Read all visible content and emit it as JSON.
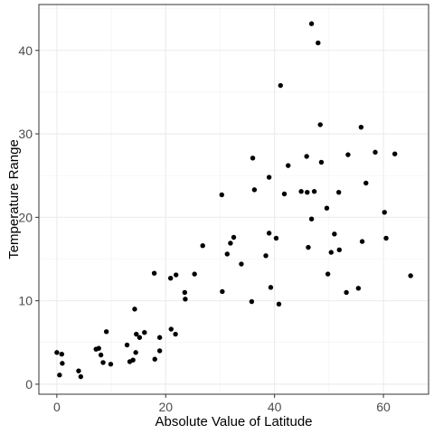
{
  "chart_data": {
    "type": "scatter",
    "title": "",
    "xlabel": "Absolute Value of Latitude",
    "ylabel": "Temperature Range",
    "xlim": [
      -3.3,
      68.3
    ],
    "ylim": [
      -1.2,
      45.5
    ],
    "xticks": [
      0,
      20,
      40,
      60
    ],
    "yticks": [
      0,
      10,
      20,
      30,
      40
    ],
    "grid": true,
    "legend": "none",
    "point_color": "#000000",
    "points": [
      [
        0,
        3.8
      ],
      [
        0.5,
        1.1
      ],
      [
        0.9,
        3.6
      ],
      [
        1.0,
        2.5
      ],
      [
        4.0,
        1.6
      ],
      [
        4.4,
        0.9
      ],
      [
        7.2,
        4.2
      ],
      [
        7.7,
        4.3
      ],
      [
        8.1,
        3.5
      ],
      [
        8.5,
        2.6
      ],
      [
        9.1,
        6.3
      ],
      [
        9.9,
        2.4
      ],
      [
        12.9,
        4.7
      ],
      [
        13.4,
        2.7
      ],
      [
        14.0,
        2.9
      ],
      [
        14.3,
        9.0
      ],
      [
        14.5,
        3.8
      ],
      [
        14.6,
        6.0
      ],
      [
        15.2,
        5.6
      ],
      [
        16.1,
        6.2
      ],
      [
        17.9,
        13.3
      ],
      [
        18.0,
        3.0
      ],
      [
        18.9,
        5.6
      ],
      [
        18.9,
        4.0
      ],
      [
        20.9,
        12.7
      ],
      [
        21.0,
        6.6
      ],
      [
        21.8,
        6.0
      ],
      [
        21.9,
        13.1
      ],
      [
        23.5,
        11.0
      ],
      [
        23.6,
        10.2
      ],
      [
        25.3,
        13.2
      ],
      [
        26.8,
        16.6
      ],
      [
        30.3,
        22.7
      ],
      [
        30.4,
        11.1
      ],
      [
        31.3,
        15.6
      ],
      [
        31.9,
        16.9
      ],
      [
        32.5,
        17.6
      ],
      [
        33.9,
        14.4
      ],
      [
        35.8,
        9.9
      ],
      [
        36.0,
        27.1
      ],
      [
        36.3,
        23.3
      ],
      [
        38.4,
        15.4
      ],
      [
        39.0,
        18.1
      ],
      [
        39.0,
        24.8
      ],
      [
        39.3,
        11.6
      ],
      [
        40.3,
        17.5
      ],
      [
        40.8,
        9.6
      ],
      [
        41.1,
        35.8
      ],
      [
        41.8,
        22.8
      ],
      [
        42.5,
        26.2
      ],
      [
        44.9,
        23.1
      ],
      [
        45.9,
        27.3
      ],
      [
        46.0,
        23.0
      ],
      [
        46.2,
        16.4
      ],
      [
        46.8,
        43.2
      ],
      [
        46.8,
        19.8
      ],
      [
        47.3,
        23.1
      ],
      [
        48.0,
        40.9
      ],
      [
        48.4,
        31.1
      ],
      [
        48.6,
        26.6
      ],
      [
        49.6,
        21.1
      ],
      [
        49.8,
        13.2
      ],
      [
        50.4,
        15.8
      ],
      [
        51.0,
        18.0
      ],
      [
        51.8,
        23.0
      ],
      [
        51.9,
        16.1
      ],
      [
        53.2,
        11.0
      ],
      [
        53.5,
        27.5
      ],
      [
        55.4,
        11.5
      ],
      [
        55.9,
        30.8
      ],
      [
        56.1,
        17.1
      ],
      [
        56.8,
        24.1
      ],
      [
        58.5,
        27.8
      ],
      [
        60.2,
        20.6
      ],
      [
        60.5,
        17.5
      ],
      [
        62.1,
        27.6
      ],
      [
        65.0,
        13.0
      ]
    ]
  }
}
